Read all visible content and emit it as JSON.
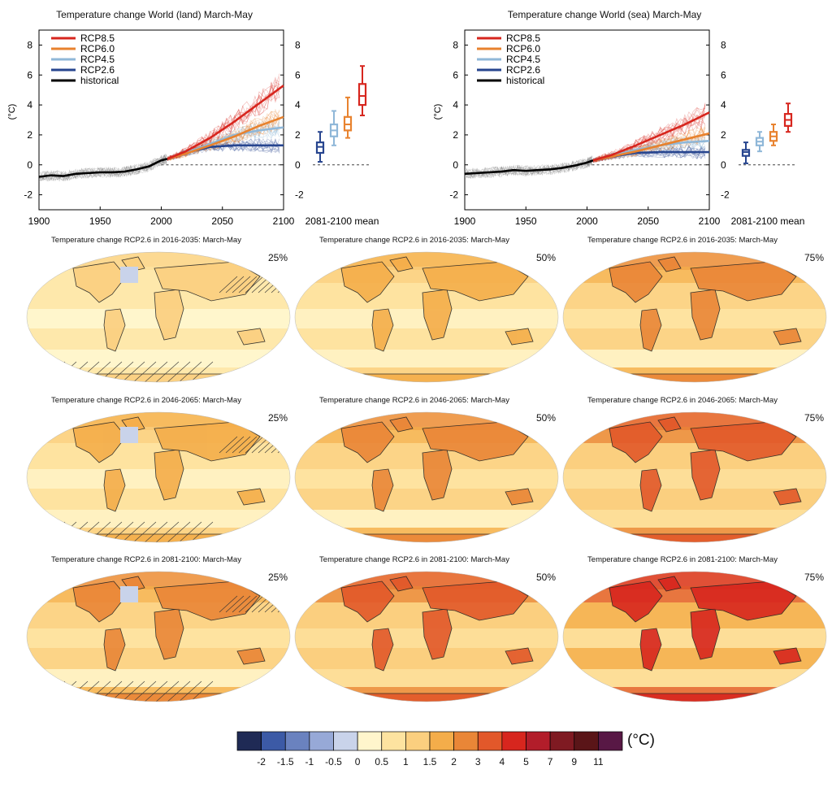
{
  "colors": {
    "rcp85": "#d7261e",
    "rcp60": "#e8822e",
    "rcp45": "#8fb7d8",
    "rcp26": "#27458f",
    "historical": "#000000"
  },
  "colorbar": {
    "unit": "(°C)",
    "labels": [
      "-2",
      "-1.5",
      "-1",
      "-0.5",
      "0",
      "0.5",
      "1",
      "1.5",
      "2",
      "3",
      "4",
      "5",
      "7",
      "9",
      "11"
    ],
    "colors": [
      "#1f2a55",
      "#3c5aa6",
      "#6a82bf",
      "#97a9d7",
      "#c9d3ea",
      "#fff5cc",
      "#fde3a0",
      "#fbcf7f",
      "#f4ad4a",
      "#e98637",
      "#e2582a",
      "#d7261e",
      "#b21d2a",
      "#7f1a22",
      "#5a1518",
      "#581845"
    ]
  },
  "chart_data": [
    {
      "type": "line",
      "title": "Temperature change World (land) March-May",
      "ylabel": "(°C)",
      "xlim": [
        1900,
        2100
      ],
      "ylim": [
        -3,
        9
      ],
      "yticks": [
        -2,
        0,
        2,
        4,
        6,
        8
      ],
      "xticks": [
        1900,
        1950,
        2000,
        2050,
        2100
      ],
      "legend": [
        "RCP8.5",
        "RCP6.0",
        "RCP4.5",
        "RCP2.6",
        "historical"
      ],
      "legend_position": "top-left",
      "series": [
        {
          "name": "historical",
          "x": [
            1900,
            1910,
            1920,
            1930,
            1940,
            1950,
            1960,
            1970,
            1980,
            1990,
            2000,
            2005
          ],
          "values": [
            -0.8,
            -0.7,
            -0.75,
            -0.6,
            -0.55,
            -0.5,
            -0.5,
            -0.45,
            -0.3,
            -0.1,
            0.3,
            0.4
          ]
        },
        {
          "name": "RCP2.6",
          "x": [
            2005,
            2020,
            2040,
            2060,
            2080,
            2100
          ],
          "values": [
            0.4,
            0.8,
            1.2,
            1.3,
            1.3,
            1.3
          ]
        },
        {
          "name": "RCP4.5",
          "x": [
            2005,
            2020,
            2040,
            2060,
            2080,
            2100
          ],
          "values": [
            0.4,
            0.8,
            1.4,
            2.0,
            2.3,
            2.5
          ]
        },
        {
          "name": "RCP6.0",
          "x": [
            2005,
            2020,
            2040,
            2060,
            2080,
            2100
          ],
          "values": [
            0.4,
            0.75,
            1.3,
            1.9,
            2.6,
            3.2
          ]
        },
        {
          "name": "RCP8.5",
          "x": [
            2005,
            2020,
            2040,
            2060,
            2080,
            2100
          ],
          "values": [
            0.4,
            0.9,
            1.8,
            2.9,
            4.1,
            5.3
          ]
        }
      ],
      "box_label": "2081-2100 mean",
      "boxes": [
        {
          "name": "RCP2.6",
          "min": 0.2,
          "q1": 0.8,
          "median": 1.2,
          "q3": 1.5,
          "max": 2.2
        },
        {
          "name": "RCP4.5",
          "min": 1.3,
          "q1": 1.9,
          "median": 2.3,
          "q3": 2.7,
          "max": 3.6
        },
        {
          "name": "RCP6.0",
          "min": 1.8,
          "q1": 2.3,
          "median": 2.7,
          "q3": 3.2,
          "max": 4.5
        },
        {
          "name": "RCP8.5",
          "min": 3.3,
          "q1": 4.0,
          "median": 4.6,
          "q3": 5.4,
          "max": 6.6
        }
      ]
    },
    {
      "type": "line",
      "title": "Temperature change World (sea) March-May",
      "ylabel": "(°C)",
      "xlim": [
        1900,
        2100
      ],
      "ylim": [
        -3,
        9
      ],
      "yticks": [
        -2,
        0,
        2,
        4,
        6,
        8
      ],
      "xticks": [
        1900,
        1950,
        2000,
        2050,
        2100
      ],
      "legend": [
        "RCP8.5",
        "RCP6.0",
        "RCP4.5",
        "RCP2.6",
        "historical"
      ],
      "legend_position": "top-left",
      "series": [
        {
          "name": "historical",
          "x": [
            1900,
            1910,
            1920,
            1930,
            1940,
            1950,
            1960,
            1970,
            1980,
            1990,
            2000,
            2005
          ],
          "values": [
            -0.6,
            -0.55,
            -0.5,
            -0.45,
            -0.35,
            -0.4,
            -0.35,
            -0.3,
            -0.2,
            -0.05,
            0.15,
            0.3
          ]
        },
        {
          "name": "RCP2.6",
          "x": [
            2005,
            2020,
            2040,
            2060,
            2080,
            2100
          ],
          "values": [
            0.3,
            0.55,
            0.8,
            0.85,
            0.85,
            0.85
          ]
        },
        {
          "name": "RCP4.5",
          "x": [
            2005,
            2020,
            2040,
            2060,
            2080,
            2100
          ],
          "values": [
            0.3,
            0.6,
            1.0,
            1.3,
            1.5,
            1.6
          ]
        },
        {
          "name": "RCP6.0",
          "x": [
            2005,
            2020,
            2040,
            2060,
            2080,
            2100
          ],
          "values": [
            0.3,
            0.55,
            0.9,
            1.3,
            1.7,
            2.1
          ]
        },
        {
          "name": "RCP8.5",
          "x": [
            2005,
            2020,
            2040,
            2060,
            2080,
            2100
          ],
          "values": [
            0.3,
            0.65,
            1.3,
            2.0,
            2.7,
            3.5
          ]
        }
      ],
      "box_label": "2081-2100 mean",
      "boxes": [
        {
          "name": "RCP2.6",
          "min": 0.1,
          "q1": 0.6,
          "median": 0.85,
          "q3": 1.0,
          "max": 1.5
        },
        {
          "name": "RCP4.5",
          "min": 0.9,
          "q1": 1.3,
          "median": 1.55,
          "q3": 1.8,
          "max": 2.2
        },
        {
          "name": "RCP6.0",
          "min": 1.3,
          "q1": 1.6,
          "median": 1.9,
          "q3": 2.2,
          "max": 2.7
        },
        {
          "name": "RCP8.5",
          "min": 2.2,
          "q1": 2.6,
          "median": 3.0,
          "q3": 3.4,
          "max": 4.1
        }
      ]
    }
  ],
  "maps": {
    "rows": [
      {
        "title": "Temperature change RCP2.6 in 2016-2035: March-May"
      },
      {
        "title": "Temperature change RCP2.6 in 2046-2065: March-May"
      },
      {
        "title": "Temperature change RCP2.6 in 2081-2100: March-May"
      }
    ],
    "percentiles": [
      "25%",
      "50%",
      "75%"
    ]
  }
}
